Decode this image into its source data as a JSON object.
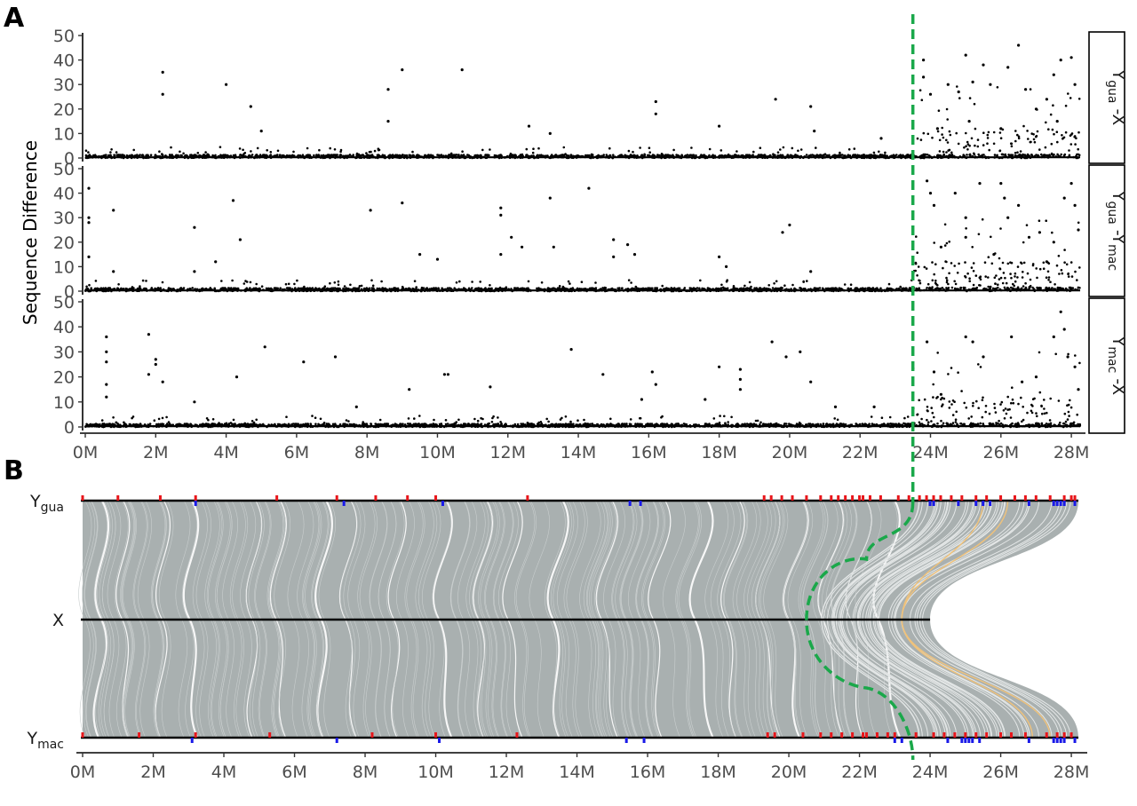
{
  "panels": {
    "a_letter": "A",
    "b_letter": "B"
  },
  "chart_data": [
    {
      "type": "scatter",
      "panel": "A",
      "ylabel": "Sequence Difference",
      "xlim": [
        0,
        28.3
      ],
      "ylim": [
        0,
        50
      ],
      "x_unit": "Mb",
      "yticks": [
        "0",
        "10",
        "20",
        "30",
        "40",
        "50"
      ],
      "xticks": [
        "0M",
        "2M",
        "4M",
        "6M",
        "8M",
        "10M",
        "12M",
        "14M",
        "16M",
        "18M",
        "20M",
        "22M",
        "24M",
        "26M",
        "28M"
      ],
      "boundary_x": 23.5,
      "boundary_color": "#1aa84a",
      "point_color": "#000000",
      "facets": [
        {
          "strip": {
            "main": "Y",
            "sub1": "gua",
            "mid": " -X",
            "sub2": ""
          },
          "points": [
            [
              2.2,
              35
            ],
            [
              2.2,
              26
            ],
            [
              4,
              30
            ],
            [
              4.7,
              21
            ],
            [
              5,
              11
            ],
            [
              8.6,
              28
            ],
            [
              8.6,
              15
            ],
            [
              9,
              36
            ],
            [
              10.7,
              36
            ],
            [
              12.6,
              13
            ],
            [
              13.2,
              10
            ],
            [
              16.2,
              23
            ],
            [
              16.2,
              18
            ],
            [
              18,
              13
            ],
            [
              19.6,
              24
            ],
            [
              20.6,
              21
            ],
            [
              20.7,
              11
            ],
            [
              22.6,
              8
            ],
            [
              23.8,
              40
            ],
            [
              23.8,
              33
            ],
            [
              24,
              26
            ],
            [
              24.5,
              30
            ],
            [
              24.8,
              27
            ],
            [
              25,
              42
            ],
            [
              25.2,
              31
            ],
            [
              25.5,
              38
            ],
            [
              25.7,
              30
            ],
            [
              26.2,
              37
            ],
            [
              26.5,
              46
            ],
            [
              26.7,
              28
            ],
            [
              27,
              20
            ],
            [
              27.3,
              24
            ],
            [
              27.5,
              34
            ],
            [
              27.7,
              40
            ],
            [
              28,
              41
            ],
            [
              28.1,
              30
            ],
            [
              24.2,
              12
            ],
            [
              25.1,
              15
            ],
            [
              26,
              12
            ],
            [
              27.6,
              15
            ]
          ]
        },
        {
          "strip": {
            "main": "Y",
            "sub1": "gua",
            "mid": " -Y",
            "sub2": "mac"
          },
          "points": [
            [
              0.1,
              42
            ],
            [
              0.1,
              30
            ],
            [
              0.1,
              28
            ],
            [
              0.1,
              14
            ],
            [
              0.8,
              33
            ],
            [
              0.8,
              8
            ],
            [
              3.1,
              26
            ],
            [
              3.1,
              8
            ],
            [
              3.7,
              12
            ],
            [
              4.2,
              37
            ],
            [
              4.4,
              21
            ],
            [
              8.1,
              33
            ],
            [
              9,
              36
            ],
            [
              9.5,
              15
            ],
            [
              10,
              13
            ],
            [
              11.8,
              34
            ],
            [
              11.8,
              31
            ],
            [
              11.8,
              15
            ],
            [
              12.1,
              22
            ],
            [
              12.4,
              18
            ],
            [
              13.2,
              38
            ],
            [
              13.3,
              18
            ],
            [
              14.3,
              42
            ],
            [
              15,
              21
            ],
            [
              15,
              14
            ],
            [
              15.4,
              19
            ],
            [
              15.6,
              15
            ],
            [
              18,
              14
            ],
            [
              18.2,
              10
            ],
            [
              19.8,
              24
            ],
            [
              20,
              27
            ],
            [
              20.6,
              8
            ],
            [
              23.9,
              45
            ],
            [
              24,
              40
            ],
            [
              24.1,
              35
            ],
            [
              24.7,
              40
            ],
            [
              25,
              30
            ],
            [
              25,
              22
            ],
            [
              25.4,
              44
            ],
            [
              26,
              44
            ],
            [
              26.1,
              38
            ],
            [
              26.2,
              30
            ],
            [
              26.5,
              35
            ],
            [
              26.8,
              22
            ],
            [
              27.1,
              24
            ],
            [
              27.5,
              20
            ],
            [
              27.8,
              38
            ],
            [
              28,
              44
            ],
            [
              28.1,
              35
            ],
            [
              28.2,
              25
            ],
            [
              25.8,
              15
            ],
            [
              24.3,
              18
            ],
            [
              27.3,
              12
            ]
          ]
        },
        {
          "strip": {
            "main": "Y",
            "sub1": "mac",
            "mid": " -X",
            "sub2": ""
          },
          "points": [
            [
              0.6,
              36
            ],
            [
              0.6,
              30
            ],
            [
              0.6,
              26
            ],
            [
              0.6,
              17
            ],
            [
              0.6,
              12
            ],
            [
              1.8,
              37
            ],
            [
              1.8,
              21
            ],
            [
              2,
              27
            ],
            [
              2,
              25
            ],
            [
              2.2,
              18
            ],
            [
              3.1,
              10
            ],
            [
              4.3,
              20
            ],
            [
              5.1,
              32
            ],
            [
              6.2,
              26
            ],
            [
              7.1,
              28
            ],
            [
              7.7,
              8
            ],
            [
              9.2,
              15
            ],
            [
              10.2,
              21
            ],
            [
              10.3,
              21
            ],
            [
              11.5,
              16
            ],
            [
              13.8,
              31
            ],
            [
              14.7,
              21
            ],
            [
              15.8,
              11
            ],
            [
              16.1,
              22
            ],
            [
              16.2,
              17
            ],
            [
              17.6,
              11
            ],
            [
              18,
              24
            ],
            [
              18.6,
              23
            ],
            [
              18.6,
              19
            ],
            [
              18.6,
              15
            ],
            [
              19.5,
              34
            ],
            [
              19.9,
              28
            ],
            [
              20.3,
              30
            ],
            [
              20.6,
              18
            ],
            [
              21.3,
              8
            ],
            [
              22.4,
              8
            ],
            [
              23.9,
              34
            ],
            [
              24.1,
              22
            ],
            [
              24.3,
              13
            ],
            [
              25,
              36
            ],
            [
              25.2,
              34
            ],
            [
              25.5,
              28
            ],
            [
              26.3,
              36
            ],
            [
              26.6,
              18
            ],
            [
              27,
              20
            ],
            [
              27.5,
              36
            ],
            [
              27.8,
              39
            ],
            [
              27.9,
              28
            ],
            [
              28.1,
              24
            ],
            [
              28.2,
              15
            ],
            [
              27.7,
              46
            ]
          ]
        }
      ]
    },
    {
      "type": "other",
      "panel": "B",
      "xlim": [
        0,
        28.3
      ],
      "xticks": [
        "0M",
        "2M",
        "4M",
        "6M",
        "8M",
        "10M",
        "12M",
        "14M",
        "16M",
        "18M",
        "20M",
        "22M",
        "24M",
        "26M",
        "28M"
      ],
      "tracks": [
        {
          "label_main": "Y",
          "label_sub": "gua",
          "start": 0,
          "end": 28.2
        },
        {
          "label_main": "X",
          "label_sub": "",
          "start": 0,
          "end": 24
        },
        {
          "label_main": "Y",
          "label_sub": "mac",
          "start": 0,
          "end": 28.2
        }
      ],
      "link_color": "#a9b0b0",
      "gap_color": "#ffffff",
      "highlight_link_color": "#f0c27a",
      "marker_colors": {
        "red": "#e8161b",
        "blue": "#1a1ae8"
      },
      "ygua_red_positions": [
        0,
        1,
        2.2,
        3.2,
        5.5,
        7.2,
        8.3,
        9.2,
        10,
        12.6,
        19.3,
        19.5,
        19.8,
        20.1,
        20.5,
        20.9,
        21.2,
        21.4,
        21.6,
        21.8,
        22,
        22.1,
        22.3,
        22.6,
        23.1,
        23.4,
        23.7,
        23.9,
        24.1,
        24.3,
        24.6,
        24.9,
        25.3,
        25.6,
        26,
        26.4,
        26.7,
        27,
        27.4,
        27.8,
        28,
        28.1
      ],
      "ygua_blue_positions": [
        3.2,
        7.4,
        10.2,
        15.5,
        15.8,
        24,
        24.1,
        24.8,
        25.3,
        25.5,
        25.7,
        26.8,
        27.5,
        27.6,
        27.7,
        27.8,
        28.1
      ],
      "ymac_red_positions": [
        0,
        1.6,
        3.2,
        5.3,
        8.2,
        10,
        12.3,
        19.4,
        19.6,
        20.4,
        20.9,
        21.2,
        21.5,
        21.8,
        22.1,
        22.2,
        22.5,
        22.8,
        23,
        23.6,
        24.1,
        24.4,
        24.7,
        25,
        25.3,
        25.6,
        26,
        26.3,
        26.7,
        27.3,
        27.6,
        27.8,
        28
      ],
      "ymac_blue_positions": [
        3.1,
        7.2,
        10.1,
        15.4,
        15.9,
        23,
        23.2,
        24.5,
        24.9,
        25,
        25.1,
        25.2,
        25.4,
        26.8,
        27.5,
        27.6,
        27.7,
        27.8,
        28.1
      ],
      "boundary_path_x": [
        23.5,
        22.2,
        20.5,
        22.2,
        23.5
      ],
      "boundary_color": "#1aa84a"
    }
  ]
}
